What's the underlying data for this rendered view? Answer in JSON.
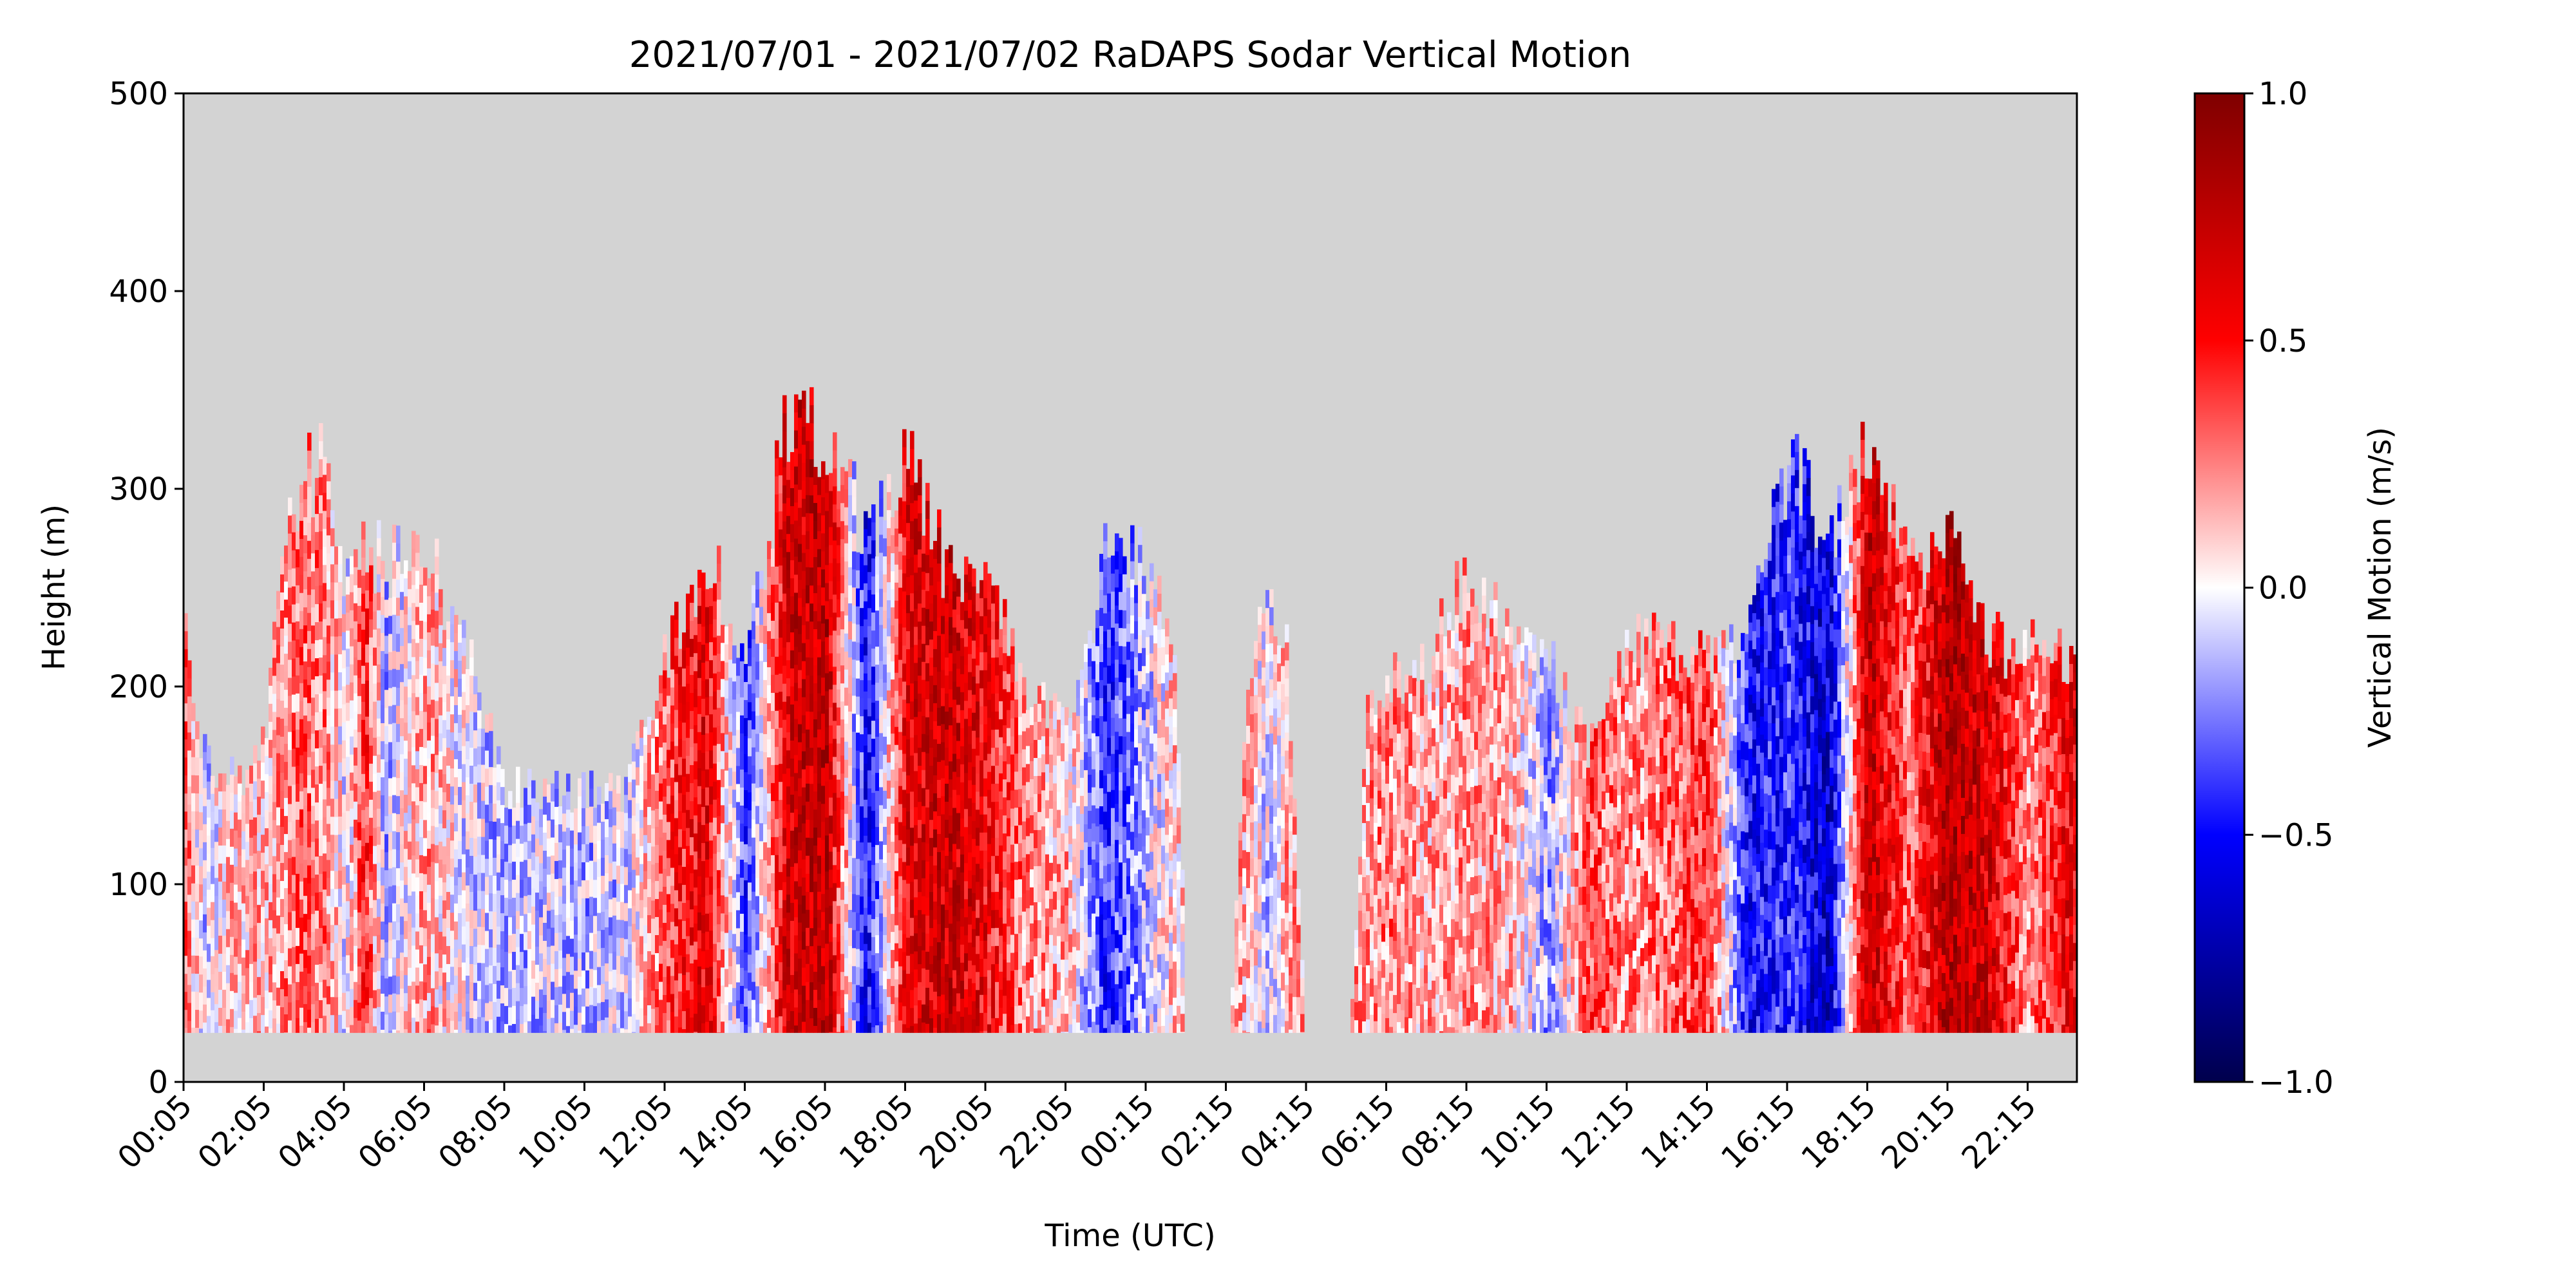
{
  "chart_data": {
    "type": "heatmap",
    "title": "2021/07/01 - 2021/07/02 RaDAPS Sodar Vertical Motion",
    "xlabel": "Time (UTC)",
    "ylabel": "Height (m)",
    "ylim": [
      0,
      500
    ],
    "yticks": [
      "0",
      "100",
      "200",
      "300",
      "400",
      "500"
    ],
    "xticks": [
      "00:05",
      "02:05",
      "04:05",
      "06:05",
      "08:05",
      "10:05",
      "12:05",
      "14:05",
      "16:05",
      "18:05",
      "20:05",
      "22:05",
      "00:15",
      "02:15",
      "04:15",
      "06:15",
      "08:15",
      "10:15",
      "12:15",
      "14:15",
      "16:15",
      "18:15",
      "20:15",
      "22:15"
    ],
    "colorbar": {
      "label": "Vertical Motion (m/s)",
      "range": [
        -1.0,
        1.0
      ],
      "ticks": [
        "1.0",
        "0.5",
        "0.0",
        "−0.5",
        "−1.0"
      ],
      "colormap": "seismic",
      "colors": [
        "#00004c",
        "#0000ff",
        "#ffffff",
        "#ff0000",
        "#7f0000"
      ]
    },
    "background_color": "#d3d3d3",
    "min_height": 25,
    "max_height_profile": [
      [
        0.0,
        250
      ],
      [
        0.5,
        175
      ],
      [
        1.5,
        160
      ],
      [
        2.0,
        190
      ],
      [
        2.5,
        295
      ],
      [
        3.5,
        355
      ],
      [
        4.0,
        280
      ],
      [
        4.5,
        295
      ],
      [
        5.0,
        280
      ],
      [
        6.0,
        290
      ],
      [
        7.0,
        240
      ],
      [
        8.0,
        160
      ],
      [
        9.0,
        160
      ],
      [
        10.0,
        160
      ],
      [
        11.0,
        160
      ],
      [
        12.0,
        230
      ],
      [
        13.0,
        290
      ],
      [
        14.0,
        240
      ],
      [
        15.0,
        355
      ],
      [
        16.0,
        355
      ],
      [
        17.0,
        300
      ],
      [
        18.0,
        340
      ],
      [
        19.0,
        280
      ],
      [
        20.0,
        280
      ],
      [
        21.0,
        220
      ],
      [
        22.0,
        190
      ],
      [
        23.0,
        290
      ],
      [
        24.0,
        280
      ],
      [
        24.7,
        250
      ],
      [
        25.0,
        0
      ],
      [
        26.0,
        0
      ],
      [
        26.5,
        230
      ],
      [
        27.0,
        260
      ],
      [
        27.5,
        230
      ],
      [
        28.0,
        0
      ],
      [
        29.0,
        0
      ],
      [
        29.5,
        200
      ],
      [
        30.0,
        220
      ],
      [
        31.0,
        230
      ],
      [
        32.0,
        280
      ],
      [
        33.0,
        240
      ],
      [
        34.0,
        230
      ],
      [
        35.0,
        180
      ],
      [
        36.0,
        240
      ],
      [
        37.0,
        240
      ],
      [
        38.0,
        230
      ],
      [
        39.0,
        240
      ],
      [
        40.0,
        340
      ],
      [
        41.0,
        300
      ],
      [
        42.0,
        355
      ],
      [
        43.0,
        290
      ],
      [
        44.0,
        295
      ],
      [
        45.0,
        240
      ],
      [
        46.0,
        235
      ],
      [
        47.0,
        235
      ]
    ],
    "motion_profile": [
      [
        0.0,
        0.3
      ],
      [
        0.5,
        -0.1
      ],
      [
        1.0,
        0.1
      ],
      [
        2.0,
        0.15
      ],
      [
        3.0,
        0.3
      ],
      [
        3.5,
        0.25
      ],
      [
        4.0,
        -0.05
      ],
      [
        4.5,
        0.45
      ],
      [
        5.0,
        -0.15
      ],
      [
        6.0,
        0.2
      ],
      [
        7.0,
        -0.05
      ],
      [
        8.0,
        -0.15
      ],
      [
        9.0,
        -0.1
      ],
      [
        10.0,
        -0.15
      ],
      [
        11.0,
        -0.1
      ],
      [
        12.0,
        0.35
      ],
      [
        13.0,
        0.6
      ],
      [
        14.0,
        -0.4
      ],
      [
        15.0,
        0.65
      ],
      [
        16.0,
        0.75
      ],
      [
        17.0,
        -0.55
      ],
      [
        18.0,
        0.6
      ],
      [
        19.0,
        0.7
      ],
      [
        20.0,
        0.55
      ],
      [
        21.0,
        0.2
      ],
      [
        22.0,
        0.15
      ],
      [
        23.0,
        -0.45
      ],
      [
        24.0,
        -0.1
      ],
      [
        24.7,
        0.1
      ],
      [
        26.5,
        0.15
      ],
      [
        27.0,
        -0.1
      ],
      [
        27.5,
        0.2
      ],
      [
        29.5,
        0.2
      ],
      [
        30.0,
        0.25
      ],
      [
        31.0,
        0.15
      ],
      [
        32.0,
        0.2
      ],
      [
        33.0,
        0.15
      ],
      [
        34.0,
        -0.2
      ],
      [
        35.0,
        0.35
      ],
      [
        36.0,
        0.2
      ],
      [
        37.0,
        0.3
      ],
      [
        38.0,
        0.4
      ],
      [
        39.0,
        -0.5
      ],
      [
        40.0,
        -0.4
      ],
      [
        41.0,
        -0.65
      ],
      [
        42.0,
        0.75
      ],
      [
        43.0,
        0.3
      ],
      [
        44.0,
        0.8
      ],
      [
        45.0,
        0.65
      ],
      [
        46.0,
        0.2
      ],
      [
        47.0,
        0.6
      ]
    ]
  }
}
